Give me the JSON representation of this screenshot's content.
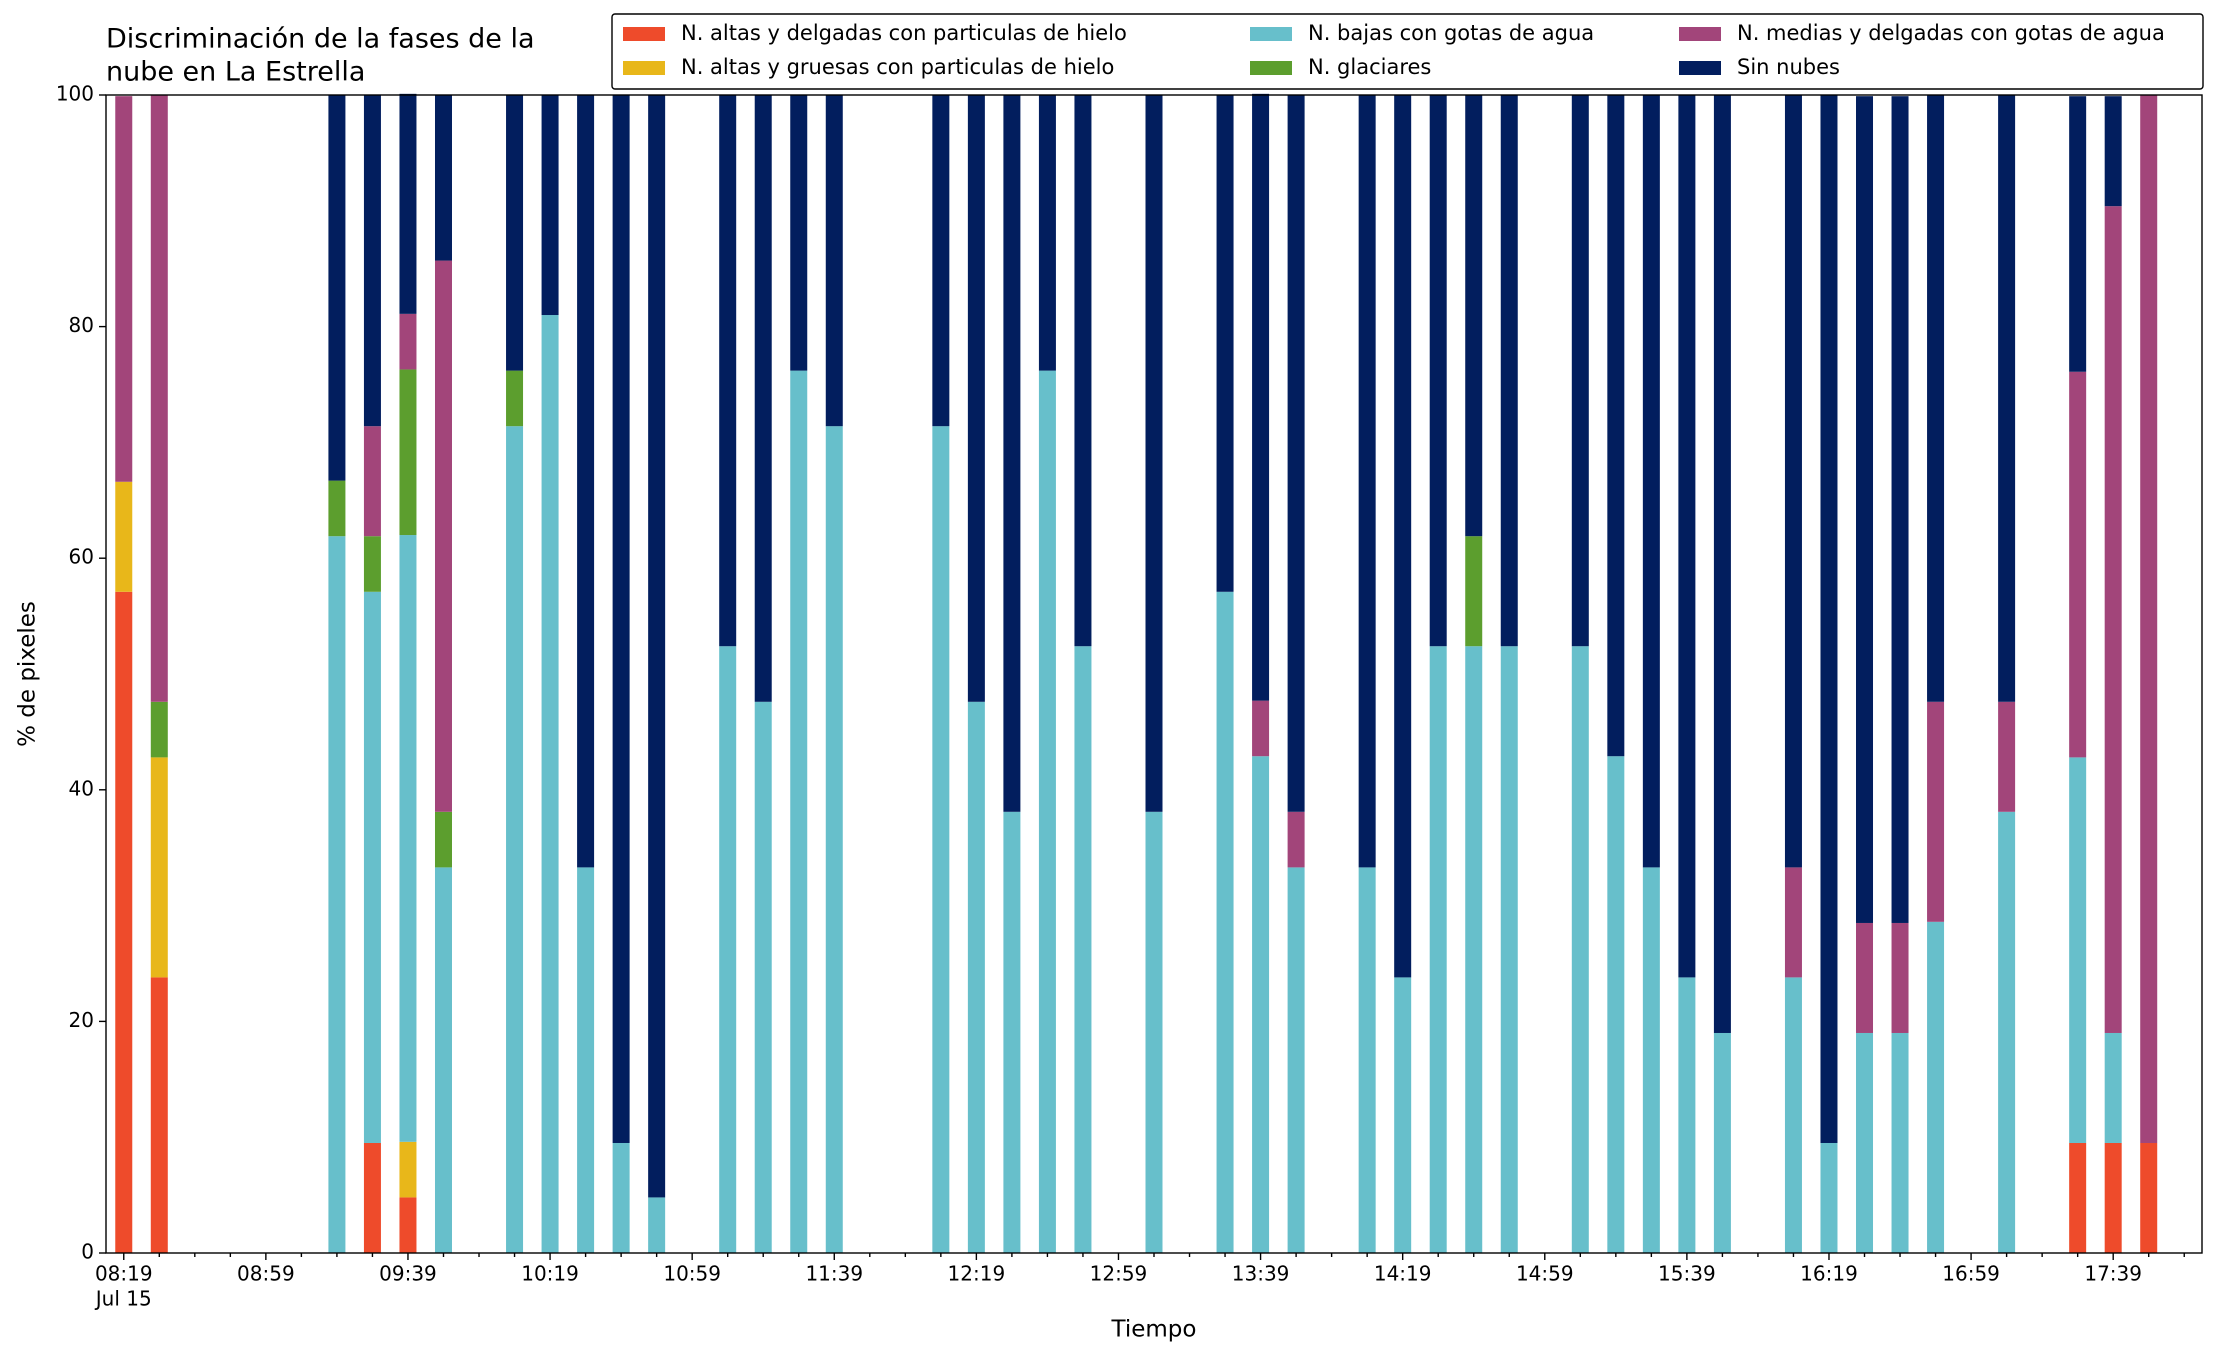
{
  "chart_data": {
    "type": "stacked_bar",
    "title": [
      "Discriminación de la fases de la",
      "nube en La Estrella"
    ],
    "xlabel": "Tiempo",
    "ylabel": "% de pixeles",
    "xdate": "Jul 15",
    "x": [
      "08:19",
      "08:29",
      "09:19",
      "09:29",
      "09:39",
      "09:49",
      "10:09",
      "10:19",
      "10:29",
      "10:39",
      "10:49",
      "11:09",
      "11:19",
      "11:29",
      "11:39",
      "12:09",
      "12:19",
      "12:29",
      "12:39",
      "12:49",
      "13:09",
      "13:29",
      "13:39",
      "13:49",
      "14:09",
      "14:19",
      "14:29",
      "14:39",
      "14:49",
      "15:09",
      "15:19",
      "15:29",
      "15:39",
      "15:49",
      "16:09",
      "16:19",
      "16:29",
      "16:39",
      "16:49",
      "17:09",
      "17:29",
      "17:39",
      "17:49"
    ],
    "series": [
      {
        "name": "N. altas y delgadas con particulas de hielo",
        "color": "#ee4b2b",
        "values": [
          57.1,
          23.8,
          0,
          9.5,
          4.8,
          0,
          0,
          0,
          0,
          0,
          0,
          0,
          0,
          0,
          0,
          0,
          0,
          0,
          0,
          0,
          0,
          0,
          0,
          0,
          0,
          0,
          0,
          0,
          0,
          0,
          0,
          0,
          0,
          0,
          0,
          0,
          0,
          0,
          0,
          0,
          9.5,
          9.5,
          9.5
        ]
      },
      {
        "name": "N. altas y gruesas con particulas de hielo",
        "color": "#e8b71a",
        "values": [
          9.5,
          19.0,
          0,
          0,
          4.8,
          0,
          0,
          0,
          0,
          0,
          0,
          0,
          0,
          0,
          0,
          0,
          0,
          0,
          0,
          0,
          0,
          0,
          0,
          0,
          0,
          0,
          0,
          0,
          0,
          0,
          0,
          0,
          0,
          0,
          0,
          0,
          0,
          0,
          0,
          0,
          0,
          0,
          0
        ]
      },
      {
        "name": "N. bajas con gotas de agua",
        "color": "#67bfcb",
        "values": [
          0,
          0,
          61.9,
          47.6,
          52.4,
          33.3,
          71.4,
          81.0,
          33.3,
          9.5,
          4.8,
          52.4,
          47.6,
          76.2,
          71.4,
          71.4,
          47.6,
          38.1,
          76.2,
          52.4,
          38.1,
          57.1,
          42.9,
          33.3,
          33.3,
          23.8,
          52.4,
          52.4,
          52.4,
          52.4,
          42.9,
          33.3,
          23.8,
          19.0,
          23.8,
          9.5,
          19.0,
          19.0,
          28.6,
          38.1,
          33.3,
          9.5,
          0
        ]
      },
      {
        "name": "N. glaciares",
        "color": "#5c9e2e",
        "values": [
          0,
          4.8,
          4.8,
          4.8,
          14.3,
          4.8,
          4.8,
          0,
          0,
          0,
          0,
          0,
          0,
          0,
          0,
          0,
          0,
          0,
          0,
          0,
          0,
          0,
          0,
          0,
          0,
          0,
          0,
          9.5,
          0,
          0,
          0,
          0,
          0,
          0,
          0,
          0,
          0,
          0,
          0,
          0,
          0,
          0,
          0
        ]
      },
      {
        "name": "N. medias y delgadas con gotas de agua",
        "color": "#a2457a",
        "values": [
          33.3,
          52.4,
          0,
          9.5,
          4.8,
          47.6,
          0,
          0,
          0,
          0,
          0,
          0,
          0,
          0,
          0,
          0,
          0,
          0,
          0,
          0,
          0,
          0,
          4.8,
          4.8,
          0,
          0,
          0,
          0,
          0,
          0,
          0,
          0,
          0,
          0,
          9.5,
          0,
          9.5,
          9.5,
          19.0,
          9.5,
          33.3,
          71.4,
          90.5
        ]
      },
      {
        "name": "Sin nubes",
        "color": "#021e5e",
        "values": [
          0,
          0,
          33.3,
          28.6,
          19.0,
          14.3,
          23.8,
          19.0,
          66.7,
          90.5,
          95.2,
          47.6,
          52.4,
          23.8,
          28.6,
          28.6,
          52.4,
          61.9,
          23.8,
          47.6,
          61.9,
          42.9,
          52.4,
          61.9,
          66.7,
          76.2,
          47.6,
          38.1,
          47.6,
          47.6,
          57.1,
          66.7,
          76.2,
          81.0,
          66.7,
          90.5,
          71.4,
          71.4,
          52.4,
          52.4,
          23.8,
          9.5,
          0
        ]
      }
    ],
    "xlim": [
      "08:14",
      "18:04"
    ],
    "xticks": [
      "08:19",
      "08:59",
      "09:39",
      "10:19",
      "10:59",
      "11:39",
      "12:19",
      "12:59",
      "13:39",
      "14:19",
      "14:59",
      "15:39",
      "16:19",
      "16:59",
      "17:39"
    ],
    "xminorticks": [
      "08:29",
      "08:39",
      "08:49",
      "09:09",
      "09:19",
      "09:29",
      "09:49",
      "09:59",
      "10:09",
      "10:29",
      "10:39",
      "10:49",
      "11:09",
      "11:19",
      "11:29",
      "11:49",
      "11:59",
      "12:09",
      "12:29",
      "12:39",
      "12:49",
      "13:09",
      "13:19",
      "13:29",
      "13:49",
      "13:59",
      "14:09",
      "14:29",
      "14:39",
      "14:49",
      "15:09",
      "15:19",
      "15:29",
      "15:49",
      "15:59",
      "16:09",
      "16:29",
      "16:39",
      "16:49",
      "17:09",
      "17:19",
      "17:29",
      "17:49",
      "17:59"
    ],
    "ylim": [
      0,
      100
    ],
    "yticks": [
      0,
      20,
      40,
      60,
      80,
      100
    ],
    "grid": false,
    "legend": "upper right"
  }
}
